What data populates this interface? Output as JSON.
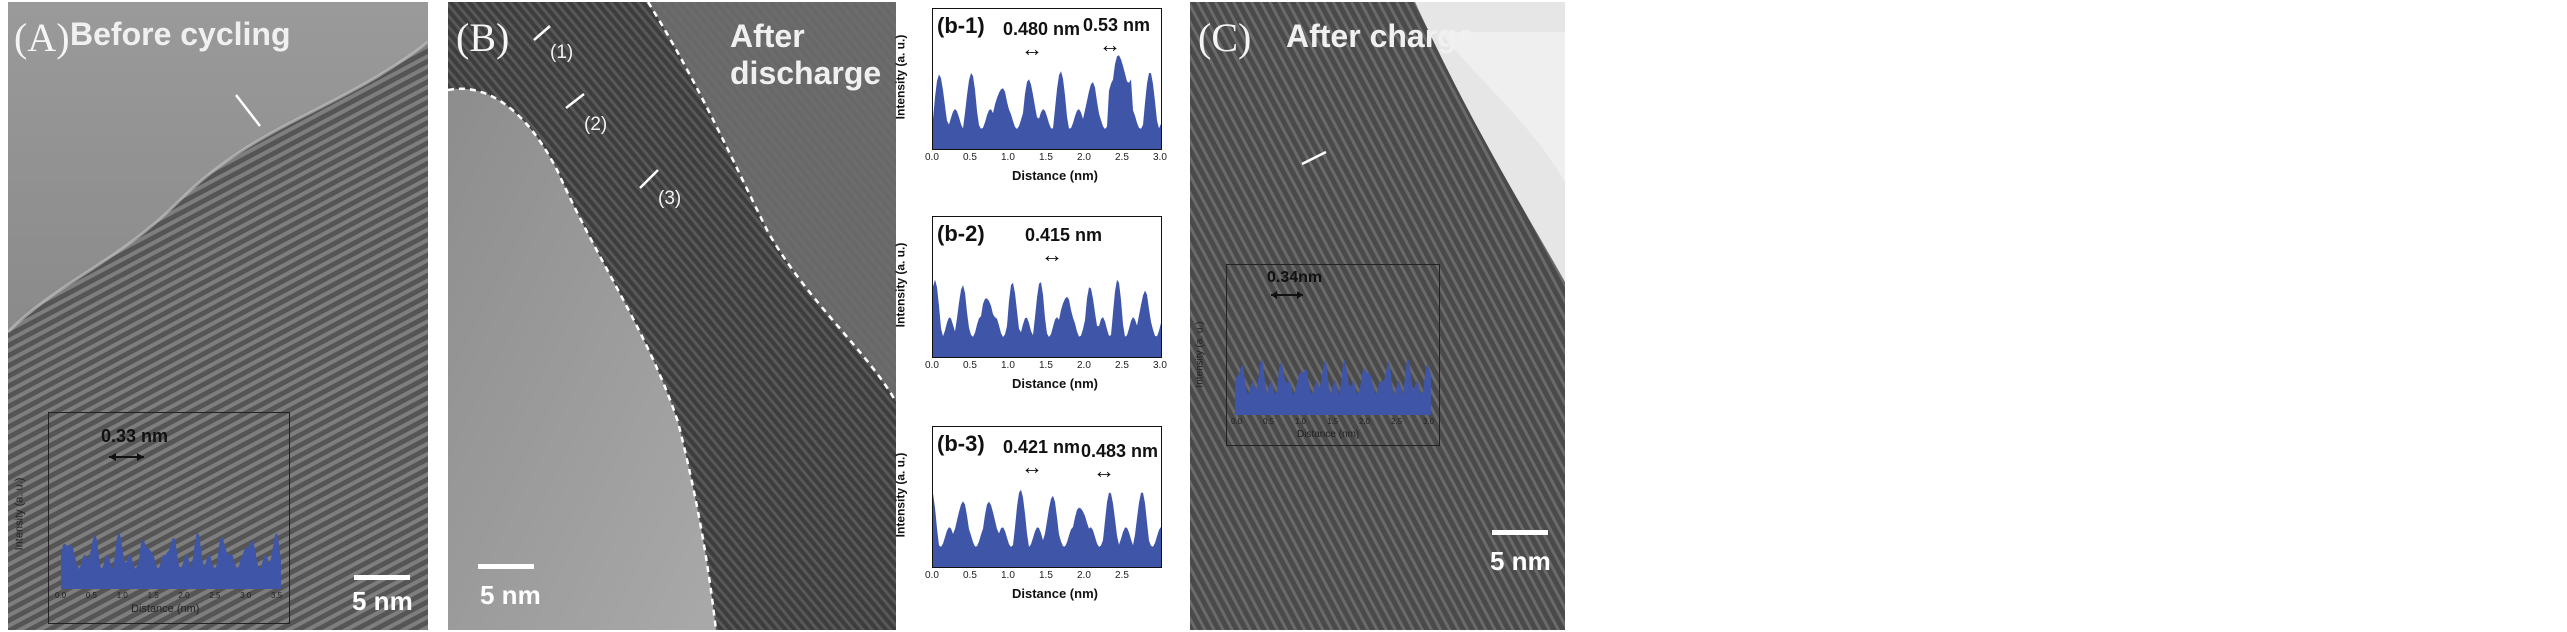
{
  "panels": {
    "A": {
      "label": "(A)",
      "title": "Before cycling",
      "scale_bar": "5 nm",
      "inset": {
        "spacing": "0.33 nm",
        "ylabel": "Intensity (a. u.)",
        "xlabel": "Distance (nm)",
        "xticks": [
          "0.0",
          "0.5",
          "1.0",
          "1.5",
          "2.0",
          "2.5",
          "3.0",
          "3.5"
        ]
      }
    },
    "B": {
      "label": "(B)",
      "title": "After discharge",
      "scale_bar": "5 nm",
      "markers": [
        "(1)",
        "(2)",
        "(3)"
      ]
    },
    "C": {
      "label": "(C)",
      "title": "After charge",
      "scale_bar": "5 nm",
      "inset": {
        "spacing": "0.34nm",
        "ylabel": "Intensity (a. u.)",
        "xlabel": "Distance (nm)",
        "xticks": [
          "0.0",
          "0.5",
          "1.0",
          "1.5",
          "2.0",
          "2.5",
          "3.0"
        ]
      }
    }
  },
  "profiles": [
    {
      "tag": "(b-1)",
      "ann1": "0.480 nm",
      "ann2": "0.53 nm",
      "ylabel": "Intensity (a. u.)",
      "xlabel": "Distance (nm)",
      "xticks": [
        "0.0",
        "0.5",
        "1.0",
        "1.5",
        "2.0",
        "2.5",
        "3.0"
      ]
    },
    {
      "tag": "(b-2)",
      "ann1": "0.415 nm",
      "ylabel": "Intensity (a. u.)",
      "xlabel": "Distance (nm)",
      "xticks": [
        "0.0",
        "0.5",
        "1.0",
        "1.5",
        "2.0",
        "2.5",
        "3.0"
      ]
    },
    {
      "tag": "(b-3)",
      "ann1": "0.421 nm",
      "ann2": "0.483 nm",
      "ylabel": "Intensity (a. u.)",
      "xlabel": "Distance (nm)",
      "xticks": [
        "0.0",
        "0.5",
        "1.0",
        "1.5",
        "2.0",
        "2.5"
      ]
    }
  ],
  "colors": {
    "profile_fill": "#3f55a8",
    "tem_dark": "#3a3a3a",
    "tem_light": "#b8b8b8"
  }
}
